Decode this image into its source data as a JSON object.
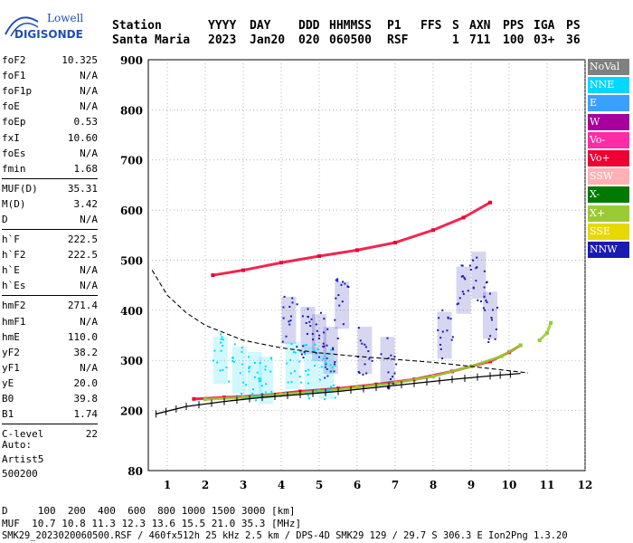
{
  "logo": {
    "line1": "Lowell",
    "line2": "DIGISONDE",
    "color": "#1f4fb4"
  },
  "header": {
    "labels": [
      "Station",
      "YYYY",
      "DAY",
      "DDD",
      "HHMMSS",
      "P1",
      "FFS",
      "S",
      "AXN",
      "PPS",
      "IGA",
      "PS"
    ],
    "values": [
      "Santa Maria",
      "2023",
      "Jan20",
      "020",
      "060500",
      "RSF",
      "1",
      "711",
      "100",
      "03+",
      "36"
    ]
  },
  "params": {
    "group1": [
      {
        "name": "foF2",
        "value": "10.325"
      },
      {
        "name": "foF1",
        "value": "N/A"
      },
      {
        "name": "foF1p",
        "value": "N/A"
      },
      {
        "name": "foE",
        "value": "N/A"
      },
      {
        "name": "foEp",
        "value": "0.53"
      },
      {
        "name": "fxI",
        "value": "10.60"
      },
      {
        "name": "foEs",
        "value": "N/A"
      },
      {
        "name": "fmin",
        "value": "1.68"
      }
    ],
    "group2": [
      {
        "name": "MUF(D)",
        "value": "35.31"
      },
      {
        "name": "M(D)",
        "value": "3.42"
      },
      {
        "name": "D",
        "value": "N/A"
      }
    ],
    "group3": [
      {
        "name": "h`F",
        "value": "222.5"
      },
      {
        "name": "h`F2",
        "value": "222.5"
      },
      {
        "name": "h`E",
        "value": "N/A"
      },
      {
        "name": "h`Es",
        "value": "N/A"
      }
    ],
    "group4": [
      {
        "name": "hmF2",
        "value": "271.4"
      },
      {
        "name": "hmF1",
        "value": "N/A"
      },
      {
        "name": "hmE",
        "value": "110.0"
      },
      {
        "name": "yF2",
        "value": "38.2"
      },
      {
        "name": "yF1",
        "value": "N/A"
      },
      {
        "name": "yE",
        "value": "20.0"
      },
      {
        "name": "B0",
        "value": "39.8"
      },
      {
        "name": "B1",
        "value": "1.74"
      }
    ],
    "group5": [
      {
        "name": "C-level",
        "value": "22"
      }
    ]
  },
  "auto": [
    "Auto:",
    "Artist5",
    "500200"
  ],
  "legend": [
    {
      "label": "NoVal",
      "color": "#808080"
    },
    {
      "label": "NNE",
      "color": "#00d8ff"
    },
    {
      "label": "E",
      "color": "#3aa0ff"
    },
    {
      "label": "W",
      "color": "#a8009a"
    },
    {
      "label": "Vo-",
      "color": "#ff2aa6"
    },
    {
      "label": "Vo+",
      "color": "#ee0033"
    },
    {
      "label": "SSW",
      "color": "#ffb0b4"
    },
    {
      "label": "X-",
      "color": "#007a00"
    },
    {
      "label": "X+",
      "color": "#9acb34"
    },
    {
      "label": "SSE",
      "color": "#e6d800"
    },
    {
      "label": "NNW",
      "color": "#1a1ab0"
    }
  ],
  "footer": {
    "line1": "D     100  200  400  600  800 1000 1500 3000 [km]",
    "line2": "MUF  10.7 10.8 11.3 12.3 13.6 15.5 21.0 35.3 [MHz]",
    "line3": "SMK29_2023020060500.RSF / 460fx512h 25 kHz 2.5 km / DPS-4D SMK29 129 / 29.7 S 306.3 E Ion2Png 1.3.20"
  },
  "chart_data": {
    "type": "scatter",
    "x_unit": "MHz",
    "y_unit": "km",
    "xlim": [
      0.5,
      12
    ],
    "ylim": [
      80,
      900
    ],
    "xticks": [
      1,
      2,
      3,
      4,
      5,
      6,
      7,
      8,
      9,
      10,
      11,
      12
    ],
    "yticks": [
      80,
      200,
      300,
      400,
      500,
      600,
      700,
      800,
      900
    ],
    "grid": true,
    "legend_placement": "right",
    "series": [
      {
        "trace": "o-trace",
        "color": "#ee0033",
        "points": [
          [
            1.7,
            223
          ],
          [
            2.5,
            226
          ],
          [
            3.5,
            230
          ],
          [
            4.5,
            238
          ],
          [
            5.5,
            244
          ],
          [
            6.5,
            252
          ],
          [
            7.5,
            262
          ],
          [
            8.5,
            278
          ],
          [
            9.5,
            298
          ],
          [
            10.0,
            316
          ],
          [
            10.3,
            330
          ]
        ]
      },
      {
        "trace": "x-trace",
        "color": "#9acb34",
        "points": [
          [
            2.0,
            222
          ],
          [
            3.0,
            226
          ],
          [
            4.0,
            232
          ],
          [
            5.0,
            238
          ],
          [
            6.0,
            246
          ],
          [
            7.0,
            255
          ],
          [
            8.0,
            268
          ],
          [
            9.0,
            288
          ],
          [
            9.8,
            308
          ],
          [
            10.3,
            330
          ]
        ]
      },
      {
        "trace": "second-hop",
        "color": "#ee0033",
        "points": [
          [
            2.2,
            470
          ],
          [
            3.0,
            480
          ],
          [
            4.0,
            495
          ],
          [
            5.0,
            508
          ],
          [
            6.0,
            520
          ],
          [
            7.0,
            535
          ],
          [
            8.0,
            560
          ],
          [
            8.8,
            585
          ],
          [
            9.5,
            615
          ]
        ]
      },
      {
        "trace": "scatter-nnw",
        "color": "#1a1ab0",
        "points": [
          [
            4.2,
            380
          ],
          [
            4.7,
            360
          ],
          [
            5.0,
            345
          ],
          [
            5.3,
            320
          ],
          [
            5.6,
            410
          ],
          [
            6.2,
            320
          ],
          [
            6.8,
            300
          ],
          [
            8.3,
            350
          ],
          [
            8.8,
            440
          ],
          [
            9.2,
            470
          ],
          [
            9.5,
            390
          ]
        ]
      },
      {
        "trace": "scatter-nne",
        "color": "#00d8ff",
        "points": [
          [
            2.4,
            300
          ],
          [
            2.9,
            280
          ],
          [
            3.3,
            270
          ],
          [
            3.6,
            260
          ],
          [
            4.3,
            290
          ],
          [
            4.8,
            280
          ],
          [
            5.2,
            270
          ]
        ]
      },
      {
        "trace": "x-trace-tail",
        "color": "#9acb34",
        "points": [
          [
            10.8,
            340
          ],
          [
            11.0,
            355
          ],
          [
            11.1,
            375
          ]
        ]
      }
    ],
    "profile": {
      "color": "#000000",
      "points": [
        [
          0.7,
          193
        ],
        [
          1.5,
          208
        ],
        [
          2.5,
          218
        ],
        [
          3.5,
          226
        ],
        [
          4.5,
          232
        ],
        [
          5.5,
          238
        ],
        [
          6.5,
          246
        ],
        [
          7.5,
          254
        ],
        [
          8.5,
          262
        ],
        [
          9.5,
          269
        ],
        [
          10.3,
          274
        ]
      ]
    },
    "model_curve": {
      "color": "#000000",
      "points": [
        [
          0.6,
          480
        ],
        [
          1.0,
          430
        ],
        [
          1.5,
          395
        ],
        [
          2.0,
          370
        ],
        [
          3.0,
          340
        ],
        [
          4.0,
          325
        ],
        [
          5.0,
          315
        ],
        [
          6.0,
          308
        ],
        [
          7.0,
          302
        ],
        [
          8.0,
          296
        ],
        [
          9.0,
          288
        ],
        [
          10.5,
          275
        ]
      ]
    }
  }
}
